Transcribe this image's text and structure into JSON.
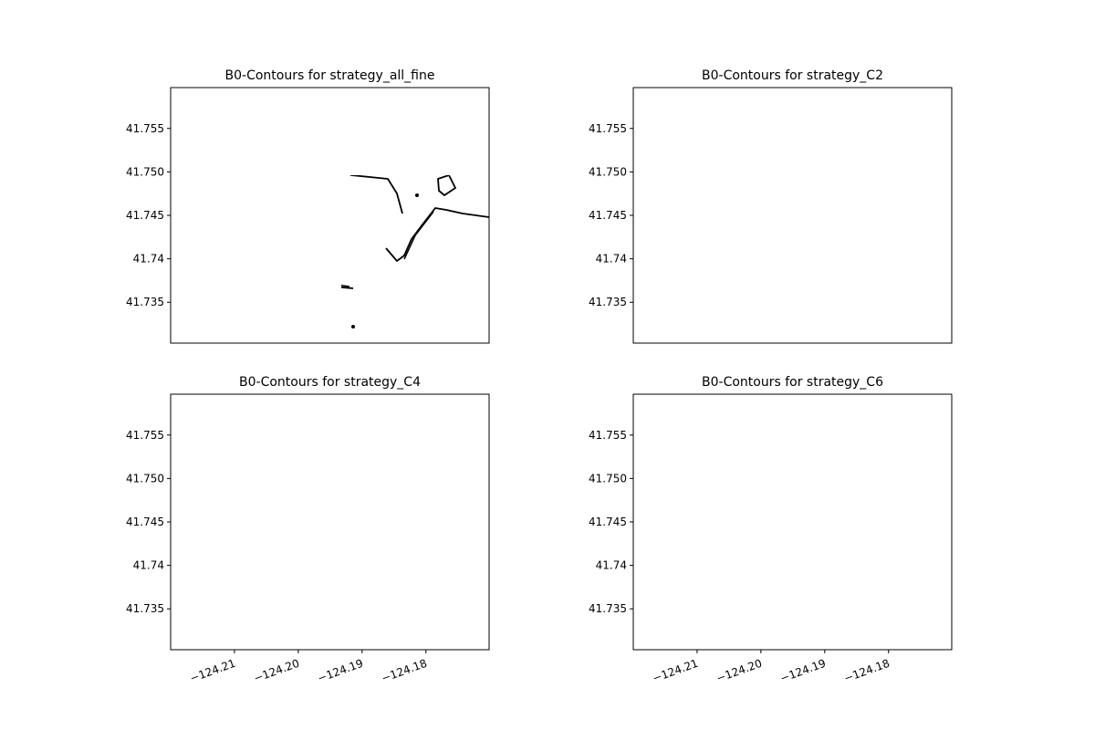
{
  "chart_data": [
    {
      "type": "contour",
      "title": "B0-Contours for  strategy_all_fine",
      "xlim": [
        -124.22,
        -124.1701
      ],
      "ylim": [
        41.7303,
        41.7597
      ],
      "yticks": [
        41.735,
        41.74,
        {
          "value": 41.745,
          "label": "41.745"
        },
        {
          "value": 41.75,
          "label": "41.750"
        },
        41.755
      ]
    },
    {
      "type": "contour",
      "title": "B0-Contours for  strategy_C2",
      "xlim": [
        -124.22,
        -124.1701
      ],
      "ylim": [
        41.7303,
        41.7597
      ],
      "yticks": [
        41.735,
        41.74,
        {
          "value": 41.745,
          "label": "41.745"
        },
        {
          "value": 41.75,
          "label": "41.750"
        },
        41.755
      ]
    },
    {
      "type": "contour",
      "title": "B0-Contours for  strategy_C4",
      "xlim": [
        -124.22,
        -124.1701
      ],
      "ylim": [
        41.7303,
        41.7597
      ],
      "xticks": [
        {
          "value": -124.21,
          "label": "−124.21"
        },
        {
          "value": -124.2,
          "label": "−124.20"
        },
        {
          "value": -124.19,
          "label": "−124.19"
        },
        {
          "value": -124.18,
          "label": "−124.18"
        }
      ],
      "yticks": [
        41.735,
        41.74,
        {
          "value": 41.745,
          "label": "41.745"
        },
        {
          "value": 41.75,
          "label": "41.750"
        },
        41.755
      ]
    },
    {
      "type": "contour",
      "title": "B0-Contours for  strategy_C6",
      "xlim": [
        -124.22,
        -124.1701
      ],
      "ylim": [
        41.7303,
        41.7597
      ],
      "xticks": [
        {
          "value": -124.21,
          "label": "−124.21"
        },
        {
          "value": -124.2,
          "label": "−124.20"
        },
        {
          "value": -124.19,
          "label": "−124.19"
        },
        {
          "value": -124.18,
          "label": "−124.18"
        }
      ],
      "yticks": [
        41.735,
        41.74,
        {
          "value": 41.745,
          "label": "41.745"
        },
        {
          "value": 41.75,
          "label": "41.750"
        },
        41.755
      ]
    }
  ]
}
